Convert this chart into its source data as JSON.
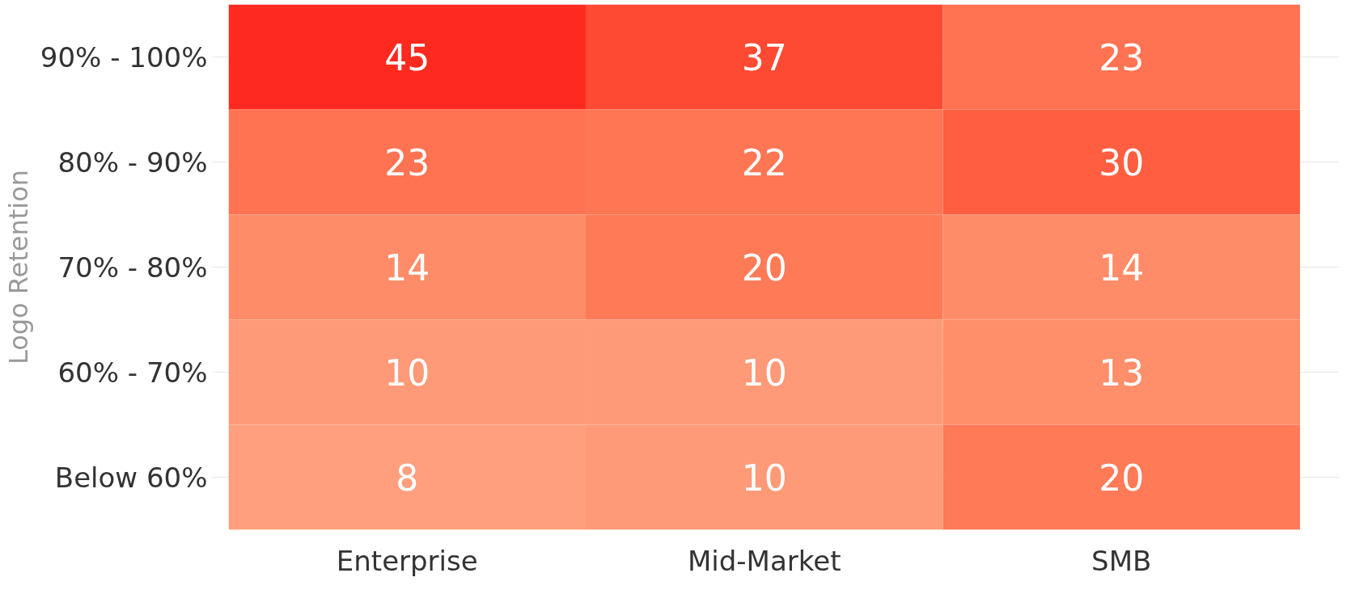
{
  "chart_data": {
    "type": "heatmap",
    "ylabel": "Logo Retention",
    "categories": [
      "Enterprise",
      "Mid-Market",
      "SMB"
    ],
    "y_categories": [
      "90% - 100%",
      "80% - 90%",
      "70% - 80%",
      "60% - 70%",
      "Below 60%"
    ],
    "cells": [
      [
        45,
        37,
        23
      ],
      [
        23,
        22,
        30
      ],
      [
        14,
        20,
        14
      ],
      [
        10,
        10,
        13
      ],
      [
        8,
        10,
        20
      ]
    ],
    "colors": [
      [
        "#fe2a1f",
        "#ff4a33",
        "#ff7352"
      ],
      [
        "#ff7352",
        "#ff7655",
        "#ff5e40"
      ],
      [
        "#ff8c68",
        "#ff7a57",
        "#ff8c68"
      ],
      [
        "#ff9a78",
        "#ff9a78",
        "#ff8e6a"
      ],
      [
        "#ff9f7e",
        "#ff9a78",
        "#ff7a57"
      ]
    ],
    "data_labels": true,
    "grid": "y"
  }
}
